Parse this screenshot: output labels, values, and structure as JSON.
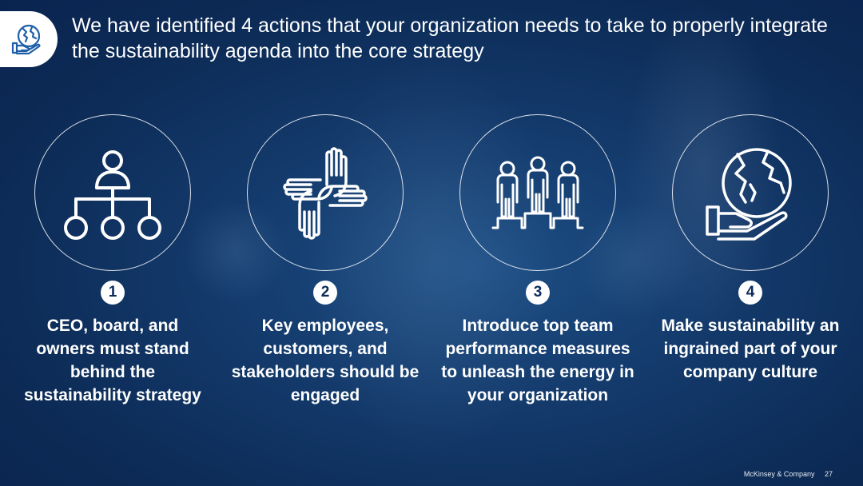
{
  "slide": {
    "title": "We have identified 4 actions that your organization needs to take to properly integrate the sustainability agenda into the core strategy",
    "logo_icon": "globe-in-hand-icon"
  },
  "actions": [
    {
      "number": "1",
      "icon": "org-chart-icon",
      "text": "CEO, board, and owners must stand behind the sustainability strategy"
    },
    {
      "number": "2",
      "icon": "joined-hands-icon",
      "text": "Key employees, customers, and stakeholders should be engaged"
    },
    {
      "number": "3",
      "icon": "team-podium-icon",
      "text": "Introduce top team performance measures to unleash the energy in your organization"
    },
    {
      "number": "4",
      "icon": "globe-in-hand-icon",
      "text": "Make sustainability an ingrained part of your company culture"
    }
  ],
  "footer": {
    "company": "McKinsey & Company",
    "page": "27"
  },
  "colors": {
    "background": "#13396a",
    "badge": "#ffffff",
    "badge_text": "#0d2c5a",
    "logo_icon": "#1f5fa8"
  }
}
